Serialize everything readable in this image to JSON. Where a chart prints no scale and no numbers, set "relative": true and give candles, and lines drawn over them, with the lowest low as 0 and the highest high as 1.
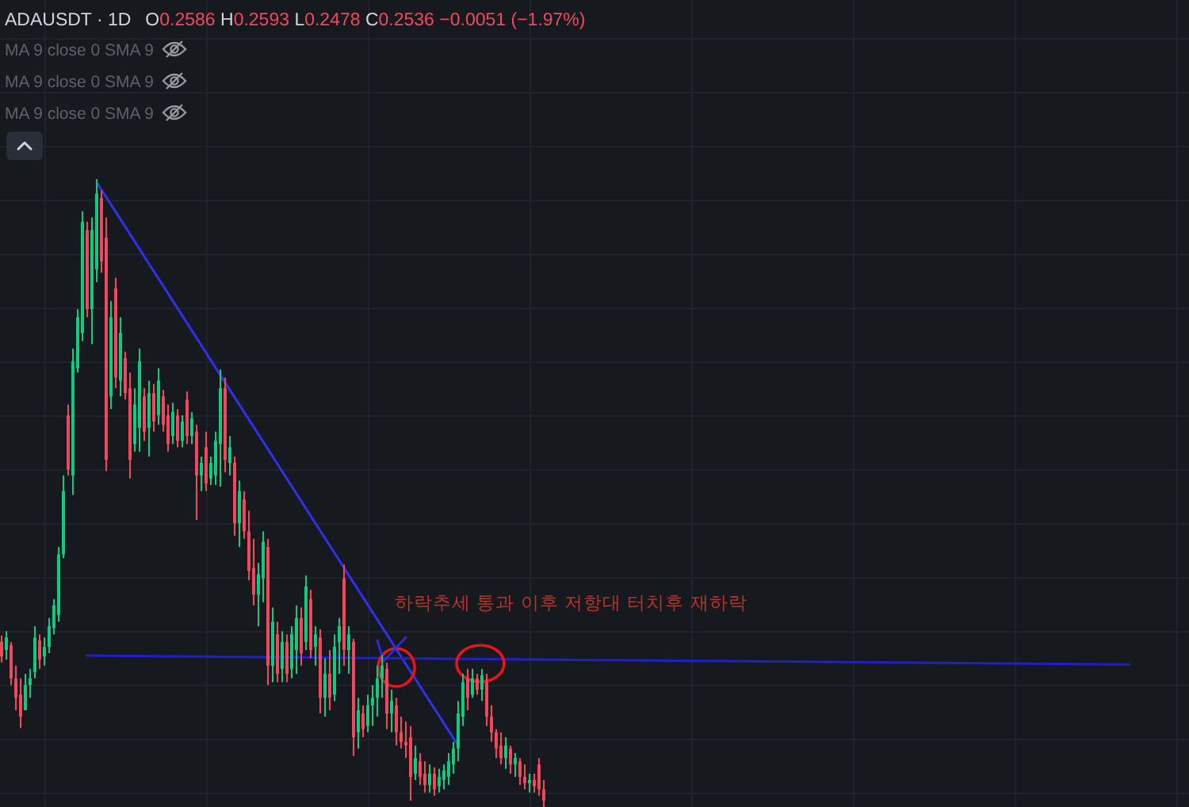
{
  "chart_data": {
    "type": "candlestick",
    "title": "ADAUSDT · 1D",
    "subtitle": "O0.2586 H0.2593 L0.2478 C0.2536 −0.0051 (−1.97%)",
    "annotations": [
      "MA 9 close 0 SMA 9",
      "MA 9 close 0 SMA 9",
      "MA 9 close 0 SMA 9",
      "하락추세 통과 이후 저항대 터치후 재하락"
    ],
    "relative": true,
    "grid": true,
    "categories": [
      null,
      null,
      null,
      null,
      null,
      null,
      null,
      null,
      null,
      null,
      null,
      null,
      null,
      null,
      null,
      null,
      null,
      null,
      null,
      null,
      null,
      null,
      null,
      null,
      null,
      null,
      null,
      null,
      null,
      null,
      null,
      null,
      null,
      null,
      null,
      null,
      null,
      null,
      null,
      null,
      null,
      null,
      null,
      null,
      null,
      null,
      null,
      null,
      null,
      null,
      null,
      null,
      null,
      null,
      null,
      null,
      null,
      null,
      null,
      null,
      null,
      null,
      null,
      null,
      null,
      null,
      null,
      null,
      null,
      null,
      null,
      null,
      null,
      null,
      null,
      null,
      null,
      null,
      null,
      null,
      null,
      null,
      null,
      null,
      null,
      null,
      null,
      null,
      null,
      null,
      null,
      null,
      null,
      null,
      null,
      null,
      null,
      null,
      null,
      null,
      null,
      null,
      null,
      null,
      null,
      null,
      null,
      null,
      null,
      null,
      null,
      null,
      null,
      null,
      null,
      null,
      null,
      null,
      null,
      null,
      null,
      null,
      null,
      null,
      null,
      null,
      null,
      null,
      null,
      null,
      null,
      null,
      null,
      null,
      null,
      null,
      null,
      null,
      null,
      null,
      null,
      null,
      null,
      null,
      null,
      null,
      null,
      null,
      null,
      null,
      null,
      null,
      null,
      null,
      null,
      null,
      null,
      null,
      null,
      null,
      null,
      null,
      null,
      null,
      null,
      null,
      null,
      null,
      null,
      null,
      null,
      null,
      null,
      null,
      null,
      null,
      null,
      null,
      null,
      null,
      null,
      null,
      null,
      null,
      null,
      null,
      null,
      null,
      null,
      null,
      null,
      null,
      null,
      null,
      null,
      null,
      null,
      null,
      null,
      null,
      null,
      null,
      null,
      null,
      null,
      null,
      null,
      null,
      null,
      null,
      null,
      null,
      null,
      null,
      null,
      null,
      null,
      null,
      null,
      null,
      null,
      null,
      null,
      null,
      null,
      null,
      null,
      null,
      null,
      null,
      null,
      null,
      null,
      null,
      null,
      null,
      null,
      null,
      null,
      null,
      null,
      null,
      null,
      null,
      null,
      null,
      null,
      null,
      null,
      null
    ],
    "ohlc": [
      [
        0.263,
        0.273,
        0.23,
        0.24
      ],
      [
        0.25,
        0.28,
        0.235,
        0.27
      ],
      [
        0.258,
        0.263,
        0.194,
        0.205
      ],
      [
        0.205,
        0.225,
        0.154,
        0.174
      ],
      [
        0.179,
        0.205,
        0.126,
        0.144
      ],
      [
        0.154,
        0.212,
        0.154,
        0.194
      ],
      [
        0.194,
        0.22,
        0.174,
        0.205
      ],
      [
        0.215,
        0.288,
        0.205,
        0.27
      ],
      [
        0.265,
        0.275,
        0.22,
        0.235
      ],
      [
        0.24,
        0.27,
        0.225,
        0.255
      ],
      [
        0.255,
        0.301,
        0.245,
        0.288
      ],
      [
        0.285,
        0.331,
        0.275,
        0.321
      ],
      [
        0.306,
        0.414,
        0.295,
        0.402
      ],
      [
        0.402,
        0.528,
        0.396,
        0.503
      ],
      [
        0.624,
        0.641,
        0.528,
        0.538
      ],
      [
        0.528,
        0.73,
        0.497,
        0.71
      ],
      [
        0.699,
        0.793,
        0.692,
        0.78
      ],
      [
        0.755,
        0.949,
        0.742,
        0.932
      ],
      [
        0.919,
        0.932,
        0.78,
        0.793
      ],
      [
        0.793,
        0.939,
        0.737,
        0.919
      ],
      [
        0.856,
        1,
        0.836,
        0.977
      ],
      [
        0.97,
        0.982,
        0.851,
        0.869
      ],
      [
        0.907,
        0.939,
        0.535,
        0.553
      ],
      [
        0.654,
        0.806,
        0.634,
        0.78
      ],
      [
        0.826,
        0.843,
        0.667,
        0.684
      ],
      [
        0.679,
        0.78,
        0.654,
        0.755
      ],
      [
        0.715,
        0.725,
        0.649,
        0.659
      ],
      [
        0.667,
        0.692,
        0.523,
        0.553
      ],
      [
        0.578,
        0.667,
        0.566,
        0.641
      ],
      [
        0.604,
        0.73,
        0.566,
        0.71
      ],
      [
        0.654,
        0.667,
        0.583,
        0.598
      ],
      [
        0.604,
        0.679,
        0.558,
        0.659
      ],
      [
        0.659,
        0.674,
        0.598,
        0.614
      ],
      [
        0.624,
        0.699,
        0.609,
        0.679
      ],
      [
        0.654,
        0.664,
        0.598,
        0.609
      ],
      [
        0.624,
        0.641,
        0.566,
        0.578
      ],
      [
        0.591,
        0.644,
        0.578,
        0.629
      ],
      [
        0.624,
        0.634,
        0.573,
        0.583
      ],
      [
        0.583,
        0.624,
        0.573,
        0.614
      ],
      [
        0.649,
        0.662,
        0.578,
        0.591
      ],
      [
        0.591,
        0.629,
        0.578,
        0.619
      ],
      [
        0.598,
        0.609,
        0.457,
        0.528
      ],
      [
        0.528,
        0.558,
        0.503,
        0.548
      ],
      [
        0.573,
        0.598,
        0.503,
        0.515
      ],
      [
        0.523,
        0.558,
        0.513,
        0.548
      ],
      [
        0.528,
        0.598,
        0.513,
        0.583
      ],
      [
        0.578,
        0.697,
        0.51,
        0.667
      ],
      [
        0.667,
        0.684,
        0.533,
        0.553
      ],
      [
        0.548,
        0.591,
        0.528,
        0.573
      ],
      [
        0.548,
        0.558,
        0.432,
        0.452
      ],
      [
        0.452,
        0.52,
        0.414,
        0.503
      ],
      [
        0.49,
        0.503,
        0.427,
        0.439
      ],
      [
        0.439,
        0.472,
        0.361,
        0.376
      ],
      [
        0.381,
        0.427,
        0.321,
        0.338
      ],
      [
        0.338,
        0.389,
        0.288,
        0.371
      ],
      [
        0.364,
        0.439,
        0.326,
        0.422
      ],
      [
        0.414,
        0.427,
        0.194,
        0.225
      ],
      [
        0.225,
        0.318,
        0.199,
        0.295
      ],
      [
        0.275,
        0.295,
        0.199,
        0.212
      ],
      [
        0.22,
        0.28,
        0.199,
        0.263
      ],
      [
        0.263,
        0.275,
        0.199,
        0.212
      ],
      [
        0.22,
        0.288,
        0.205,
        0.275
      ],
      [
        0.25,
        0.321,
        0.212,
        0.301
      ],
      [
        0.301,
        0.318,
        0.225,
        0.245
      ],
      [
        0.263,
        0.369,
        0.25,
        0.351
      ],
      [
        0.331,
        0.346,
        0.237,
        0.25
      ],
      [
        0.255,
        0.288,
        0.225,
        0.275
      ],
      [
        0.27,
        0.283,
        0.149,
        0.174
      ],
      [
        0.174,
        0.237,
        0.144,
        0.212
      ],
      [
        0.212,
        0.25,
        0.154,
        0.174
      ],
      [
        0.179,
        0.275,
        0.169,
        0.255
      ],
      [
        0.263,
        0.301,
        0.212,
        0.288
      ],
      [
        0.364,
        0.386,
        0.225,
        0.25
      ],
      [
        0.25,
        0.288,
        0.212,
        0.275
      ],
      [
        0.263,
        0.268,
        0.081,
        0.111
      ],
      [
        0.119,
        0.174,
        0.093,
        0.154
      ],
      [
        0.149,
        0.162,
        0.111,
        0.124
      ],
      [
        0.129,
        0.179,
        0.119,
        0.162
      ],
      [
        0.162,
        0.194,
        0.129,
        0.174
      ],
      [
        0.174,
        0.225,
        0.144,
        0.205
      ],
      [
        0.205,
        0.242,
        0.174,
        0.225
      ],
      [
        0.22,
        0.23,
        0.124,
        0.149
      ],
      [
        0.149,
        0.187,
        0.119,
        0.169
      ],
      [
        0.162,
        0.174,
        0.098,
        0.119
      ],
      [
        0.119,
        0.144,
        0.093,
        0.104
      ],
      [
        0.104,
        0.136,
        0.078,
        0.098
      ],
      [
        0.111,
        0.129,
        0.01,
        0.048
      ],
      [
        0.053,
        0.098,
        0.043,
        0.078
      ],
      [
        0.073,
        0.086,
        0.035,
        0.048
      ],
      [
        0.053,
        0.073,
        0.023,
        0.035
      ],
      [
        0.035,
        0.068,
        0.023,
        0.053
      ],
      [
        0.053,
        0.063,
        0.018,
        0.028
      ],
      [
        0.033,
        0.061,
        0.023,
        0.048
      ],
      [
        0.043,
        0.068,
        0.028,
        0.058
      ],
      [
        0.048,
        0.086,
        0.035,
        0.073
      ],
      [
        0.068,
        0.104,
        0.053,
        0.093
      ],
      [
        0.093,
        0.169,
        0.073,
        0.149
      ],
      [
        0.144,
        0.212,
        0.129,
        0.199
      ],
      [
        0.205,
        0.22,
        0.154,
        0.174
      ],
      [
        0.179,
        0.22,
        0.174,
        0.205
      ],
      [
        0.205,
        0.212,
        0.179,
        0.187
      ],
      [
        0.187,
        0.22,
        0.169,
        0.21
      ],
      [
        0.199,
        0.212,
        0.129,
        0.144
      ],
      [
        0.144,
        0.162,
        0.104,
        0.119
      ],
      [
        0.119,
        0.124,
        0.078,
        0.093
      ],
      [
        0.098,
        0.119,
        0.068,
        0.078
      ],
      [
        0.078,
        0.111,
        0.061,
        0.098
      ],
      [
        0.093,
        0.098,
        0.053,
        0.068
      ],
      [
        0.068,
        0.086,
        0.048,
        0.078
      ],
      [
        0.073,
        0.078,
        0.035,
        0.048
      ],
      [
        0.048,
        0.068,
        0.028,
        0.038
      ],
      [
        0.038,
        0.053,
        0.023,
        0.043
      ],
      [
        0.043,
        0.053,
        0.023,
        0.033
      ],
      [
        0.068,
        0.078,
        0.018,
        0.028
      ],
      [
        0.028,
        0.043,
        0,
        0.01
      ],
      null,
      null,
      null,
      null,
      null,
      null,
      null,
      null,
      null,
      null,
      null,
      null,
      null,
      null,
      null,
      null,
      null,
      null,
      null,
      null,
      null,
      null,
      null,
      null,
      null,
      null,
      null,
      null,
      null,
      null,
      null,
      null,
      null,
      null,
      null,
      null,
      null,
      null,
      null,
      null,
      null,
      null,
      null,
      null,
      null,
      null,
      null,
      null,
      null,
      null,
      null,
      null,
      null,
      null,
      null,
      null,
      null,
      null,
      null,
      null,
      null,
      null,
      null,
      null,
      null,
      null,
      null,
      null,
      null,
      null,
      null,
      null,
      null,
      null,
      null,
      null,
      null,
      null,
      null,
      null,
      null,
      null,
      null,
      null,
      null,
      null,
      null,
      null,
      null,
      null,
      null,
      null,
      null,
      null,
      null,
      null,
      null,
      null,
      null,
      null,
      null,
      null,
      null,
      null,
      null,
      null,
      null,
      null,
      null,
      null,
      null,
      null,
      null,
      null,
      null,
      null,
      null,
      null,
      null,
      null,
      null,
      null,
      null,
      null,
      null,
      null,
      null,
      null,
      null,
      null,
      null,
      null,
      null,
      null,
      null
    ],
    "series": [
      {
        "type": "line",
        "color": "#3030f0",
        "values": [
          null,
          null,
          null,
          null,
          null,
          null,
          null,
          null,
          null,
          null,
          null,
          null,
          null,
          null,
          null,
          null,
          null,
          null,
          null,
          null,
          0.995,
          null,
          null,
          null,
          null,
          null,
          null,
          null,
          null,
          null,
          null,
          null,
          null,
          null,
          null,
          null,
          null,
          null,
          null,
          null,
          null,
          null,
          null,
          null,
          null,
          null,
          0.688,
          null,
          null,
          null,
          null,
          null,
          null,
          null,
          null,
          null,
          null,
          null,
          null,
          null,
          null,
          null,
          null,
          null,
          null,
          null,
          null,
          null,
          null,
          null,
          null,
          null,
          0.381,
          null,
          null,
          null,
          null,
          null,
          null,
          null,
          null,
          null,
          null,
          null,
          null,
          null,
          null,
          null,
          null,
          null,
          null,
          null,
          null,
          null,
          null,
          null,
          0.098,
          null,
          null,
          null,
          null,
          null,
          null,
          null,
          null,
          null,
          null,
          null,
          null,
          null,
          null,
          null,
          null,
          null,
          null,
          null,
          null,
          null,
          null,
          null,
          null,
          null,
          null,
          null,
          null,
          null,
          null,
          null,
          null,
          null,
          null,
          null,
          null,
          null,
          null,
          null,
          null,
          null,
          null,
          null,
          null,
          null,
          null,
          null,
          null,
          null,
          null,
          null,
          null,
          null,
          null,
          null,
          null,
          null,
          null,
          null,
          null,
          null,
          null,
          null,
          null,
          null,
          null,
          null,
          null,
          null,
          null,
          null,
          null,
          null,
          null,
          null,
          null,
          null,
          null,
          null,
          null,
          null,
          null,
          null,
          null,
          null,
          null,
          null,
          null,
          null,
          null,
          null,
          null,
          null,
          null,
          null,
          null,
          null,
          null,
          null,
          null,
          null,
          null,
          null,
          null,
          null,
          null,
          null,
          null,
          null,
          null,
          null,
          null,
          null,
          null,
          null,
          null,
          null,
          null,
          null,
          null,
          null,
          null,
          null,
          null,
          null,
          null,
          null,
          null,
          null,
          null,
          null,
          null,
          null,
          null,
          null,
          null,
          null,
          null,
          null,
          null,
          null,
          null,
          null,
          null,
          null,
          null,
          null,
          null,
          null,
          null,
          null,
          null,
          null
        ]
      },
      {
        "type": "line",
        "color": "#2020c8",
        "values": [
          null,
          null,
          null,
          null,
          null,
          null,
          null,
          null,
          null,
          null,
          null,
          null,
          null,
          null,
          null,
          null,
          null,
          null,
          0.241,
          null,
          null,
          null,
          null,
          null,
          null,
          null,
          null,
          null,
          null,
          null,
          null,
          null,
          null,
          null,
          null,
          null,
          null,
          null,
          null,
          null,
          null,
          null,
          null,
          null,
          null,
          null,
          null,
          null,
          null,
          null,
          null,
          null,
          null,
          null,
          null,
          null,
          null,
          null,
          null,
          null,
          null,
          null,
          null,
          null,
          null,
          null,
          null,
          null,
          null,
          null,
          null,
          null,
          null,
          null,
          null,
          null,
          null,
          null,
          null,
          null,
          null,
          null,
          null,
          null,
          null,
          null,
          null,
          null,
          null,
          null,
          null,
          null,
          null,
          null,
          null,
          null,
          null,
          null,
          null,
          null,
          null,
          null,
          null,
          null,
          null,
          null,
          null,
          null,
          null,
          null,
          null,
          null,
          null,
          null,
          null,
          null,
          null,
          null,
          null,
          null,
          null,
          null,
          null,
          null,
          null,
          null,
          null,
          null,
          null,
          null,
          null,
          null,
          null,
          null,
          null,
          null,
          null,
          null,
          null,
          null,
          null,
          null,
          null,
          null,
          null,
          null,
          null,
          null,
          null,
          null,
          null,
          null,
          null,
          null,
          null,
          null,
          null,
          null,
          null,
          null,
          null,
          null,
          null,
          null,
          null,
          null,
          null,
          null,
          null,
          null,
          null,
          null,
          null,
          null,
          null,
          null,
          null,
          null,
          null,
          null,
          null,
          null,
          null,
          null,
          null,
          null,
          null,
          null,
          null,
          null,
          null,
          null,
          null,
          null,
          null,
          null,
          null,
          null,
          null,
          null,
          null,
          null,
          null,
          null,
          null,
          null,
          null,
          null,
          null,
          null,
          null,
          null,
          null,
          null,
          null,
          null,
          null,
          null,
          null,
          null,
          null,
          null,
          null,
          null,
          null,
          null,
          null,
          null,
          null,
          null,
          null,
          null,
          null,
          null,
          null,
          null,
          null,
          0.227,
          null,
          null,
          null,
          null,
          null,
          null,
          null,
          null,
          null,
          null,
          null,
          null
        ]
      }
    ]
  }
}
